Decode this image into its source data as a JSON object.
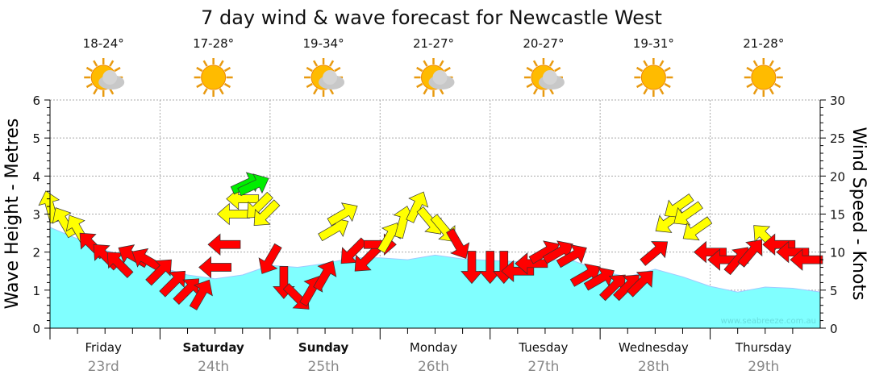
{
  "chart_data": {
    "type": "area",
    "title": "7 day wind & wave forecast for Newcastle West",
    "ylabel": "Wave Height - Metres",
    "y2label": "Wind Speed - Knots",
    "ylim": [
      0,
      6
    ],
    "y2lim": [
      0,
      30
    ],
    "yticks": [
      "0",
      "1",
      "2",
      "3",
      "4",
      "5",
      "6"
    ],
    "y2ticks": [
      "0",
      "5",
      "10",
      "15",
      "20",
      "25",
      "30"
    ],
    "watermark": "www.seabreeze.com.au",
    "grid": true,
    "hours_total": 168,
    "days": [
      {
        "name": "Friday",
        "date": "23rd",
        "temp": "18-24°",
        "icon": "sun-cloud",
        "bold": false
      },
      {
        "name": "Saturday",
        "date": "24th",
        "temp": "17-28°",
        "icon": "sun",
        "bold": true
      },
      {
        "name": "Sunday",
        "date": "25th",
        "temp": "19-34°",
        "icon": "sun-cloud",
        "bold": true
      },
      {
        "name": "Monday",
        "date": "26th",
        "temp": "21-27°",
        "icon": "sun-cloud",
        "bold": false
      },
      {
        "name": "Tuesday",
        "date": "27th",
        "temp": "20-27°",
        "icon": "sun-cloud",
        "bold": false
      },
      {
        "name": "Wednesday",
        "date": "28th",
        "temp": "19-31°",
        "icon": "sun",
        "bold": false
      },
      {
        "name": "Thursday",
        "date": "29th",
        "temp": "21-28°",
        "icon": "sun",
        "bold": false
      }
    ],
    "wave_series": {
      "name": "Wave height (m)",
      "hours": [
        0,
        6,
        12,
        18,
        24,
        30,
        36,
        42,
        48,
        54,
        60,
        66,
        72,
        78,
        84,
        90,
        96,
        102,
        108,
        114,
        120,
        126,
        132,
        138,
        144,
        150,
        156,
        162,
        168
      ],
      "values": [
        2.65,
        2.35,
        2.05,
        1.85,
        1.6,
        1.4,
        1.3,
        1.4,
        1.65,
        1.6,
        1.7,
        1.85,
        1.85,
        1.8,
        1.92,
        1.82,
        1.78,
        1.75,
        1.8,
        1.78,
        1.5,
        1.35,
        1.55,
        1.35,
        1.1,
        0.95,
        1.08,
        1.05,
        0.95
      ]
    },
    "wind_series": {
      "name": "Wind (knots, arrow heading deg)",
      "points": [
        [
          0,
          16,
          345,
          "#ffff00"
        ],
        [
          3,
          14,
          330,
          "#ffff00"
        ],
        [
          6,
          13,
          330,
          "#ffff00"
        ],
        [
          9,
          11,
          315,
          "#ff0000"
        ],
        [
          12,
          9.5,
          315,
          "#ff0000"
        ],
        [
          15,
          8.5,
          315,
          "#ff0000"
        ],
        [
          18,
          9.5,
          300,
          "#ff0000"
        ],
        [
          21,
          9,
          300,
          "#ff0000"
        ],
        [
          24,
          7.5,
          45,
          "#ff0000"
        ],
        [
          27,
          6,
          45,
          "#ff0000"
        ],
        [
          30,
          5,
          45,
          "#ff0000"
        ],
        [
          33,
          4.5,
          30,
          "#ff0000"
        ],
        [
          36,
          8,
          270,
          "#ff0000"
        ],
        [
          38,
          11,
          270,
          "#ff0000"
        ],
        [
          40,
          15,
          270,
          "#ffff00"
        ],
        [
          42,
          17,
          270,
          "#ffff00"
        ],
        [
          43,
          19,
          65,
          "#00ee00"
        ],
        [
          44.5,
          18.8,
          65,
          "#00ee00"
        ],
        [
          45.5,
          16,
          225,
          "#ffff00"
        ],
        [
          47,
          15,
          225,
          "#ffff00"
        ],
        [
          48,
          9,
          210,
          "#ff0000"
        ],
        [
          51,
          6,
          180,
          "#ff0000"
        ],
        [
          54,
          4,
          135,
          "#ff0000"
        ],
        [
          57,
          5,
          30,
          "#ff0000"
        ],
        [
          60,
          7,
          30,
          "#ff0000"
        ],
        [
          62,
          13,
          60,
          "#ffff00"
        ],
        [
          64,
          15,
          60,
          "#ffff00"
        ],
        [
          66,
          10,
          225,
          "#ff0000"
        ],
        [
          69,
          9,
          225,
          "#ff0000"
        ],
        [
          72,
          11,
          90,
          "#ff0000"
        ],
        [
          74,
          12,
          30,
          "#ffff00"
        ],
        [
          77,
          14,
          15,
          "#ffff00"
        ],
        [
          80,
          16,
          25,
          "#ffff00"
        ],
        [
          83,
          14,
          140,
          "#ffff00"
        ],
        [
          86,
          13,
          140,
          "#ffff00"
        ],
        [
          89,
          11,
          150,
          "#ff0000"
        ],
        [
          92,
          8,
          180,
          "#ff0000"
        ],
        [
          96,
          8,
          180,
          "#ff0000"
        ],
        [
          99,
          8,
          180,
          "#ff0000"
        ],
        [
          102,
          7.5,
          270,
          "#ff0000"
        ],
        [
          105,
          8.5,
          270,
          "#ff0000"
        ],
        [
          108,
          10,
          60,
          "#ff0000"
        ],
        [
          111,
          10,
          60,
          "#ff0000"
        ],
        [
          114,
          9.5,
          60,
          "#ff0000"
        ],
        [
          117,
          7,
          60,
          "#ff0000"
        ],
        [
          120,
          6.5,
          60,
          "#ff0000"
        ],
        [
          123,
          5.5,
          45,
          "#ff0000"
        ],
        [
          126,
          5.5,
          45,
          "#ff0000"
        ],
        [
          129,
          6,
          45,
          "#ff0000"
        ],
        [
          132,
          10,
          50,
          "#ff0000"
        ],
        [
          135,
          14,
          235,
          "#ffff00"
        ],
        [
          137,
          16,
          235,
          "#ffff00"
        ],
        [
          139,
          15,
          235,
          "#ffff00"
        ],
        [
          141,
          13,
          235,
          "#ffff00"
        ],
        [
          144,
          10,
          270,
          "#ff0000"
        ],
        [
          147,
          9,
          270,
          "#ff0000"
        ],
        [
          150,
          9,
          40,
          "#ff0000"
        ],
        [
          153,
          10,
          40,
          "#ff0000"
        ],
        [
          156,
          12,
          315,
          "#ffff00"
        ],
        [
          159,
          11,
          270,
          "#ff0000"
        ],
        [
          162,
          10,
          270,
          "#ff0000"
        ],
        [
          165,
          9,
          270,
          "#ff0000"
        ]
      ]
    },
    "colors": {
      "wave_fill": "#80ffff",
      "wave_line": "#a0c8ff",
      "grid": "#aaaaaa",
      "date": "#888888"
    }
  }
}
